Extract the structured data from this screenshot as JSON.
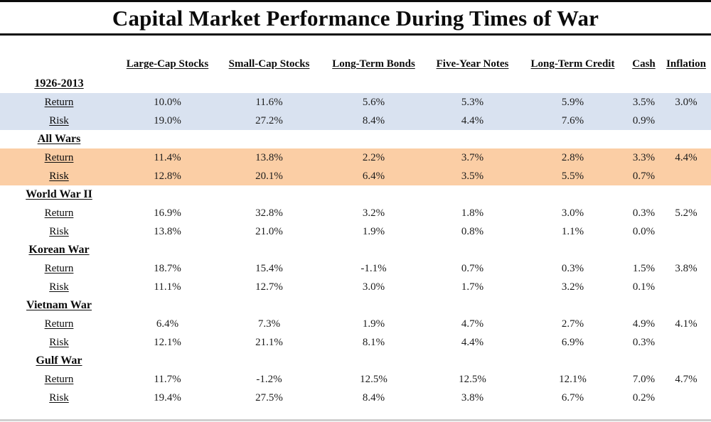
{
  "title": "Capital Market Performance During Times of War",
  "colors": {
    "highlight_blue": "#D9E2F0",
    "highlight_orange": "#FBCEA5",
    "rule_black": "#0b0b0b",
    "rule_bottom_gray": "#cfcfcf"
  },
  "table": {
    "columns": [
      "Large-Cap Stocks",
      "Small-Cap Stocks",
      "Long-Term Bonds",
      "Five-Year Notes",
      "Long-Term Credit",
      "Cash",
      "Inflation"
    ],
    "row_labels": {
      "return": "Return",
      "risk": "Risk"
    },
    "sections": [
      {
        "name": "1926-2013",
        "highlight": "#D9E2F0",
        "return": [
          "10.0%",
          "11.6%",
          "5.6%",
          "5.3%",
          "5.9%",
          "3.5%",
          "3.0%"
        ],
        "risk": [
          "19.0%",
          "27.2%",
          "8.4%",
          "4.4%",
          "7.6%",
          "0.9%",
          ""
        ]
      },
      {
        "name": "All Wars",
        "highlight": "#FBCEA5",
        "return": [
          "11.4%",
          "13.8%",
          "2.2%",
          "3.7%",
          "2.8%",
          "3.3%",
          "4.4%"
        ],
        "risk": [
          "12.8%",
          "20.1%",
          "6.4%",
          "3.5%",
          "5.5%",
          "0.7%",
          ""
        ]
      },
      {
        "name": "World War II",
        "highlight": null,
        "return": [
          "16.9%",
          "32.8%",
          "3.2%",
          "1.8%",
          "3.0%",
          "0.3%",
          "5.2%"
        ],
        "risk": [
          "13.8%",
          "21.0%",
          "1.9%",
          "0.8%",
          "1.1%",
          "0.0%",
          ""
        ]
      },
      {
        "name": "Korean War",
        "highlight": null,
        "return": [
          "18.7%",
          "15.4%",
          "-1.1%",
          "0.7%",
          "0.3%",
          "1.5%",
          "3.8%"
        ],
        "risk": [
          "11.1%",
          "12.7%",
          "3.0%",
          "1.7%",
          "3.2%",
          "0.1%",
          ""
        ]
      },
      {
        "name": "Vietnam War",
        "highlight": null,
        "return": [
          "6.4%",
          "7.3%",
          "1.9%",
          "4.7%",
          "2.7%",
          "4.9%",
          "4.1%"
        ],
        "risk": [
          "12.1%",
          "21.1%",
          "8.1%",
          "4.4%",
          "6.9%",
          "0.3%",
          ""
        ]
      },
      {
        "name": "Gulf War",
        "highlight": null,
        "return": [
          "11.7%",
          "-1.2%",
          "12.5%",
          "12.5%",
          "12.1%",
          "7.0%",
          "4.7%"
        ],
        "risk": [
          "19.4%",
          "27.5%",
          "8.4%",
          "3.8%",
          "6.7%",
          "0.2%",
          ""
        ]
      }
    ]
  },
  "chart_data": {
    "type": "table",
    "title": "Capital Market Performance During Times of War",
    "categories": [
      "Large-Cap Stocks",
      "Small-Cap Stocks",
      "Long-Term Bonds",
      "Five-Year Notes",
      "Long-Term Credit",
      "Cash",
      "Inflation"
    ],
    "series": [
      {
        "name": "1926-2013 Return",
        "values": [
          10.0,
          11.6,
          5.6,
          5.3,
          5.9,
          3.5,
          3.0
        ]
      },
      {
        "name": "1926-2013 Risk",
        "values": [
          19.0,
          27.2,
          8.4,
          4.4,
          7.6,
          0.9,
          null
        ]
      },
      {
        "name": "All Wars Return",
        "values": [
          11.4,
          13.8,
          2.2,
          3.7,
          2.8,
          3.3,
          4.4
        ]
      },
      {
        "name": "All Wars Risk",
        "values": [
          12.8,
          20.1,
          6.4,
          3.5,
          5.5,
          0.7,
          null
        ]
      },
      {
        "name": "World War II Return",
        "values": [
          16.9,
          32.8,
          3.2,
          1.8,
          3.0,
          0.3,
          5.2
        ]
      },
      {
        "name": "World War II Risk",
        "values": [
          13.8,
          21.0,
          1.9,
          0.8,
          1.1,
          0.0,
          null
        ]
      },
      {
        "name": "Korean War Return",
        "values": [
          18.7,
          15.4,
          -1.1,
          0.7,
          0.3,
          1.5,
          3.8
        ]
      },
      {
        "name": "Korean War Risk",
        "values": [
          11.1,
          12.7,
          3.0,
          1.7,
          3.2,
          0.1,
          null
        ]
      },
      {
        "name": "Vietnam War Return",
        "values": [
          6.4,
          7.3,
          1.9,
          4.7,
          2.7,
          4.9,
          4.1
        ]
      },
      {
        "name": "Vietnam War Risk",
        "values": [
          12.1,
          21.1,
          8.1,
          4.4,
          6.9,
          0.3,
          null
        ]
      },
      {
        "name": "Gulf War Return",
        "values": [
          11.7,
          -1.2,
          12.5,
          12.5,
          12.1,
          7.0,
          4.7
        ]
      },
      {
        "name": "Gulf War Risk",
        "values": [
          19.4,
          27.5,
          8.4,
          3.8,
          6.7,
          0.2,
          null
        ]
      }
    ],
    "units": "percent"
  }
}
